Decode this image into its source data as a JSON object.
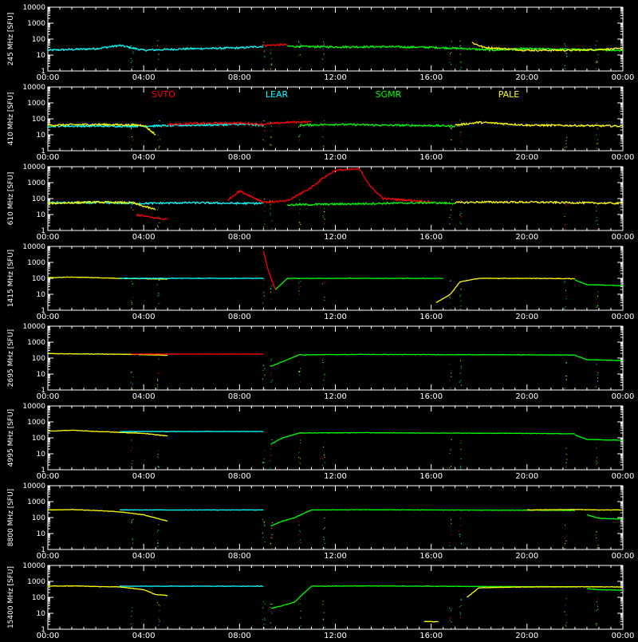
{
  "chart_data": {
    "type": "line",
    "x_ticks": [
      "00:00",
      "04:00",
      "08:00",
      "12:00",
      "16:00",
      "20:00",
      "00:00"
    ],
    "y_ticks": [
      "1",
      "10",
      "100",
      "1000",
      "10000"
    ],
    "y_scale": "log",
    "ylim": [
      1,
      10000
    ],
    "xlim_hours": [
      0,
      24
    ],
    "grid": false,
    "legend": {
      "placement": "top of second panel",
      "entries": [
        {
          "name": "SVTO",
          "color": "#ff0000"
        },
        {
          "name": "LEAR",
          "color": "#00ffff"
        },
        {
          "name": "SGMR",
          "color": "#00ff00"
        },
        {
          "name": "PALE",
          "color": "#ffff00"
        }
      ]
    },
    "panels": [
      {
        "ylabel": "245 MHz [SFU]",
        "baseline": 20,
        "series": [
          {
            "station": "LEAR",
            "x": [
              0,
              2,
              3,
              4,
              6,
              8,
              9
            ],
            "y": [
              20,
              25,
              40,
              20,
              25,
              28,
              35
            ]
          },
          {
            "station": "SVTO",
            "x": [
              9,
              10
            ],
            "y": [
              40,
              45
            ]
          },
          {
            "station": "SGMR",
            "x": [
              10,
              12,
              14,
              16,
              17.5,
              18.5,
              20,
              22,
              24
            ],
            "y": [
              35,
              32,
              33,
              30,
              25,
              20,
              25,
              22,
              20
            ]
          },
          {
            "station": "PALE",
            "x": [
              17.7,
              18.2,
              19,
              20,
              22,
              24
            ],
            "y": [
              60,
              30,
              25,
              20,
              20,
              25
            ]
          }
        ]
      },
      {
        "ylabel": "410 MHz [SFU]",
        "baseline": 35,
        "series": [
          {
            "station": "LEAR",
            "x": [
              0,
              2,
              4,
              6,
              8,
              9
            ],
            "y": [
              35,
              35,
              35,
              40,
              45,
              40
            ]
          },
          {
            "station": "PALE",
            "x": [
              0,
              2,
              4,
              4.5
            ],
            "y": [
              40,
              45,
              40,
              10
            ]
          },
          {
            "station": "SVTO",
            "x": [
              5,
              6,
              8,
              9,
              10,
              11
            ],
            "y": [
              45,
              50,
              55,
              45,
              60,
              65
            ]
          },
          {
            "station": "SGMR",
            "x": [
              10.5,
              12,
              14,
              16,
              17
            ],
            "y": [
              40,
              45,
              40,
              38,
              35
            ]
          },
          {
            "station": "PALE",
            "x": [
              17,
              18,
              19,
              20,
              22,
              24
            ],
            "y": [
              40,
              60,
              50,
              40,
              38,
              35
            ]
          }
        ]
      },
      {
        "ylabel": "610 MHz [SFU]",
        "baseline": 50,
        "series": [
          {
            "station": "LEAR",
            "x": [
              0,
              2,
              4,
              6,
              8,
              9
            ],
            "y": [
              55,
              55,
              50,
              55,
              50,
              50
            ]
          },
          {
            "station": "PALE",
            "x": [
              0,
              2,
              3.5,
              4.5
            ],
            "y": [
              50,
              60,
              55,
              20
            ]
          },
          {
            "station": "SVTO",
            "x": [
              3.7,
              4,
              4.5,
              5
            ],
            "y": [
              10,
              8,
              6,
              5
            ]
          },
          {
            "station": "SVTO",
            "x": [
              7.5,
              8,
              9,
              10,
              11,
              11.5,
              12,
              13,
              13.5,
              14,
              15,
              16
            ],
            "y": [
              80,
              300,
              60,
              70,
              500,
              2000,
              6000,
              7000,
              500,
              100,
              80,
              60
            ]
          },
          {
            "station": "SGMR",
            "x": [
              10,
              12,
              14,
              16,
              17
            ],
            "y": [
              40,
              45,
              50,
              55,
              50
            ]
          },
          {
            "station": "PALE",
            "x": [
              17,
              18,
              20,
              22,
              24
            ],
            "y": [
              55,
              60,
              60,
              55,
              50
            ]
          }
        ]
      },
      {
        "ylabel": "1415 MHz [SFU]",
        "baseline": 100,
        "series": [
          {
            "station": "PALE",
            "x": [
              0,
              1,
              2,
              3,
              4,
              5
            ],
            "y": [
              110,
              120,
              110,
              100,
              95,
              90
            ]
          },
          {
            "station": "LEAR",
            "x": [
              3,
              5,
              7,
              9
            ],
            "y": [
              100,
              100,
              100,
              100
            ]
          },
          {
            "station": "SVTO",
            "x": [
              9,
              9.2,
              9.5
            ],
            "y": [
              5000,
              300,
              20
            ]
          },
          {
            "station": "SGMR",
            "x": [
              9.5,
              10,
              11,
              13,
              15,
              16.5
            ],
            "y": [
              20,
              100,
              100,
              100,
              100,
              100
            ]
          },
          {
            "station": "PALE",
            "x": [
              16.2,
              16.8,
              17.2,
              18,
              20,
              22
            ],
            "y": [
              3,
              10,
              60,
              100,
              100,
              95
            ]
          },
          {
            "station": "SGMR",
            "x": [
              22,
              22.5,
              24
            ],
            "y": [
              80,
              40,
              35
            ]
          }
        ]
      },
      {
        "ylabel": "2695 MHz [SFU]",
        "baseline": 180,
        "series": [
          {
            "station": "PALE",
            "x": [
              0,
              2,
              3.5,
              5
            ],
            "y": [
              190,
              180,
              170,
              150
            ]
          },
          {
            "station": "SVTO",
            "x": [
              3.5,
              6,
              9
            ],
            "y": [
              180,
              180,
              180
            ]
          },
          {
            "station": "SGMR",
            "x": [
              9.3,
              9.8,
              10.5,
              13,
              16,
              20,
              22
            ],
            "y": [
              30,
              60,
              160,
              170,
              165,
              160,
              155
            ]
          },
          {
            "station": "SGMR",
            "x": [
              22,
              22.5,
              24
            ],
            "y": [
              150,
              80,
              70
            ]
          }
        ]
      },
      {
        "ylabel": "4995 MHz [SFU]",
        "baseline": 260,
        "series": [
          {
            "station": "PALE",
            "x": [
              0,
              1,
              2,
              3,
              4,
              5
            ],
            "y": [
              260,
              300,
              250,
              220,
              190,
              130
            ]
          },
          {
            "station": "LEAR",
            "x": [
              3,
              6,
              9
            ],
            "y": [
              250,
              250,
              250
            ]
          },
          {
            "station": "SGMR",
            "x": [
              9.3,
              9.8,
              10.5,
              13,
              16,
              20,
              22
            ],
            "y": [
              40,
              100,
              200,
              210,
              200,
              190,
              180
            ]
          },
          {
            "station": "SGMR",
            "x": [
              22,
              22.5,
              24
            ],
            "y": [
              150,
              80,
              70
            ]
          }
        ]
      },
      {
        "ylabel": "8800 MHz [SFU]",
        "baseline": 300,
        "series": [
          {
            "station": "PALE",
            "x": [
              0,
              1,
              2,
              3,
              4,
              5
            ],
            "y": [
              300,
              320,
              280,
              230,
              150,
              60
            ]
          },
          {
            "station": "LEAR",
            "x": [
              3,
              6,
              9
            ],
            "y": [
              300,
              300,
              300
            ]
          },
          {
            "station": "SGMR",
            "x": [
              9.3,
              9.8,
              10.3,
              11,
              13,
              16,
              20,
              22
            ],
            "y": [
              30,
              60,
              100,
              300,
              310,
              300,
              290,
              280
            ]
          },
          {
            "station": "PALE",
            "x": [
              20,
              22,
              23,
              24
            ],
            "y": [
              300,
              320,
              300,
              300
            ]
          },
          {
            "station": "SGMR",
            "x": [
              22.5,
              23,
              24
            ],
            "y": [
              150,
              90,
              80
            ]
          }
        ]
      },
      {
        "ylabel": "15400 MHz [SFU]",
        "baseline": 500,
        "series": [
          {
            "station": "PALE",
            "x": [
              0,
              1,
              2,
              3,
              4,
              4.5,
              5
            ],
            "y": [
              500,
              520,
              480,
              450,
              300,
              150,
              130
            ]
          },
          {
            "station": "LEAR",
            "x": [
              3,
              6,
              9
            ],
            "y": [
              500,
              500,
              500
            ]
          },
          {
            "station": "SGMR",
            "x": [
              9.3,
              9.8,
              10.3,
              11,
              13,
              16,
              18,
              20,
              22
            ],
            "y": [
              20,
              30,
              50,
              500,
              520,
              500,
              480,
              470,
              460
            ]
          },
          {
            "station": "PALE",
            "x": [
              15.7,
              16.3
            ],
            "y": [
              3,
              3
            ]
          },
          {
            "station": "PALE",
            "x": [
              17.5,
              18,
              20,
              22,
              24
            ],
            "y": [
              100,
              400,
              450,
              460,
              450
            ]
          },
          {
            "station": "SGMR",
            "x": [
              22.5,
              23,
              24
            ],
            "y": [
              350,
              300,
              280
            ]
          }
        ]
      }
    ]
  }
}
